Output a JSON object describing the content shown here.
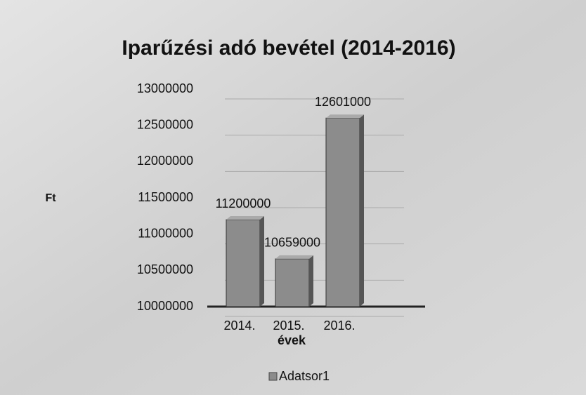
{
  "chart_data": {
    "type": "bar",
    "title": "Iparűzési adó bevétel (2014-2016)",
    "y_label": "Ft",
    "x_label": "évek",
    "categories": [
      "2014.",
      "2015.",
      "2016."
    ],
    "series": [
      {
        "name": "Adatsor1",
        "color": "#8c8c8c",
        "values": [
          11200000,
          10659000,
          12601000
        ]
      }
    ],
    "ylim": [
      10000000,
      13000000
    ],
    "yticks": [
      10000000,
      10500000,
      11000000,
      11500000,
      12000000,
      12500000,
      13000000
    ],
    "grid": true,
    "legend": "bottom"
  }
}
